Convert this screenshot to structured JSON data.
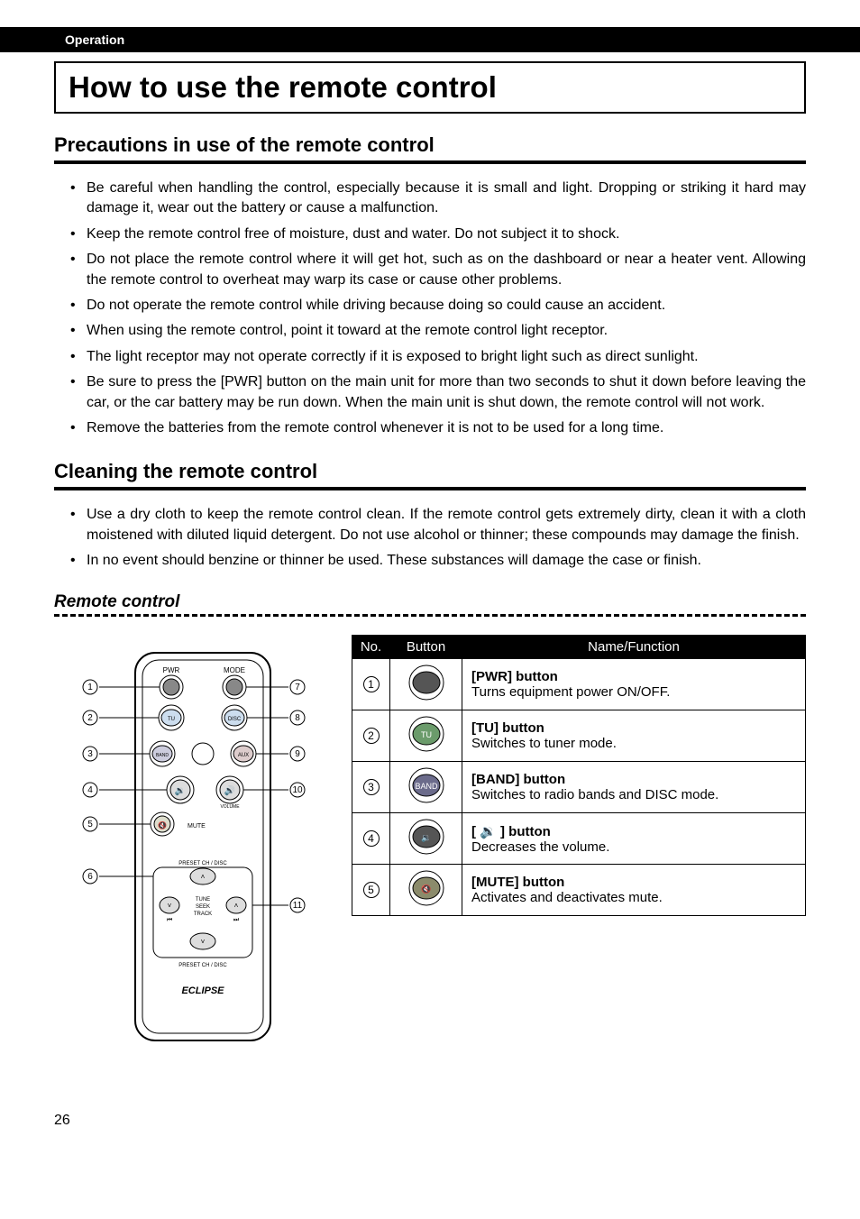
{
  "header": {
    "section": "Operation"
  },
  "title": "How to use the remote control",
  "precautions": {
    "heading": "Precautions in use of the remote control",
    "items": [
      "Be careful when handling the control, especially because it is small and light. Dropping or striking it hard may damage it, wear out the battery or cause a malfunction.",
      "Keep the remote control free of moisture, dust and water. Do not subject it to shock.",
      "Do not place the remote control where it will get hot, such as on the dashboard or near a heater vent. Allowing the remote control to overheat may warp its case or cause other problems.",
      "Do not operate the remote control while driving because doing so could cause an accident.",
      "When using the remote control, point it toward at the remote control light receptor.",
      "The light receptor may not operate correctly if it is exposed to bright light such as direct sunlight.",
      "Be sure to press the [PWR] button on the main unit for more than two seconds to shut it down before leaving the car, or the car battery may be run down. When the main unit is shut down, the remote control will not work.",
      "Remove the batteries from the remote control whenever it is not to be used for a long time."
    ]
  },
  "cleaning": {
    "heading": "Cleaning the remote control",
    "items": [
      "Use a dry cloth to keep the remote control clean. If the remote control gets extremely dirty, clean it with a cloth moistened with diluted liquid detergent. Do not use alcohol or thinner; these compounds may damage the finish.",
      "In no event should benzine or thinner be used. These substances will damage the case or finish."
    ]
  },
  "remote": {
    "heading": "Remote control",
    "labels": {
      "pwr": "PWR",
      "mode": "MODE",
      "tu": "TU",
      "disc": "DISC",
      "band": "BAND",
      "aux": "AUX",
      "mute": "MUTE",
      "volume": "VOLUME",
      "preset_top": "PRESET CH / DISC",
      "tune": "TUNE",
      "seek": "SEEK",
      "track": "TRACK",
      "preset_bottom": "PRESET CH / DISC",
      "brand": "ECLIPSE"
    },
    "callouts": [
      "①",
      "②",
      "③",
      "④",
      "⑤",
      "⑥",
      "⑦",
      "⑧",
      "⑨",
      "⑩",
      "⑪"
    ]
  },
  "table": {
    "headers": {
      "no": "No.",
      "button": "Button",
      "name": "Name/Function"
    },
    "rows": [
      {
        "no": "①",
        "btn_label": "",
        "btn_color": "#555555",
        "name": "[PWR] button",
        "desc": "Turns equipment power ON/OFF."
      },
      {
        "no": "②",
        "btn_label": "TU",
        "btn_color": "#6b9b6b",
        "name": "[TU] button",
        "desc": "Switches to tuner mode."
      },
      {
        "no": "③",
        "btn_label": "BAND",
        "btn_color": "#6b6b8b",
        "name": "[BAND] button",
        "desc": "Switches to radio bands and DISC mode."
      },
      {
        "no": "④",
        "btn_label": "vol-",
        "btn_color": "#555555",
        "name": "[ 🔉 ] button",
        "desc": "Decreases the volume."
      },
      {
        "no": "⑤",
        "btn_label": "mute",
        "btn_color": "#8b8b6b",
        "name": "[MUTE] button",
        "desc": "Activates and deactivates mute."
      }
    ]
  },
  "page_number": "26",
  "styling": {
    "bg": "#ffffff",
    "text": "#000000",
    "header_bg": "#000000",
    "header_fg": "#ffffff",
    "rule_thickness": 4,
    "dash_thickness": 3,
    "font_family": "Arial, Helvetica, sans-serif",
    "title_fontsize": 33,
    "h2_fontsize": 22,
    "body_fontsize": 16
  }
}
